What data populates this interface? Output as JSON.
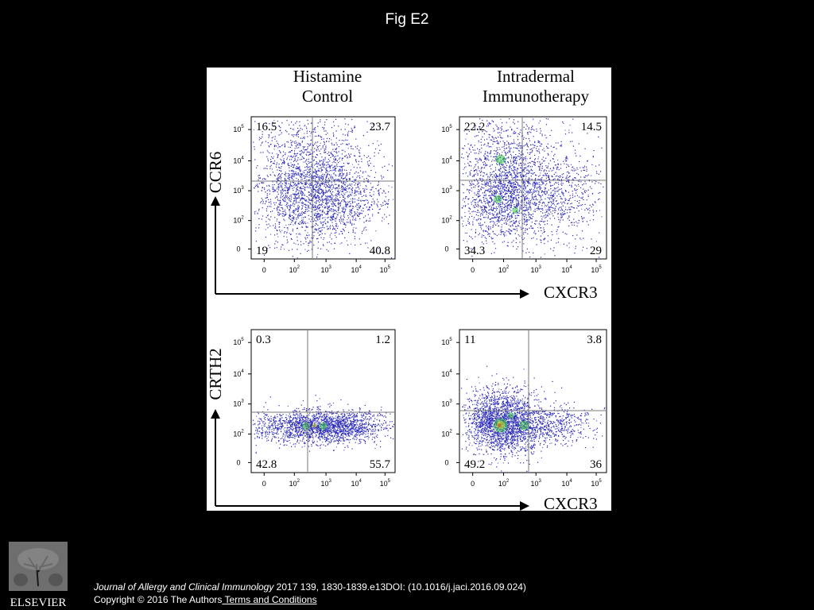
{
  "slide_title": "Fig E2",
  "figure": {
    "column_headers": [
      {
        "line1": "Histamine",
        "line2": "Control"
      },
      {
        "line1": "Intradermal",
        "line2": "Immunotherapy"
      }
    ],
    "row_axis_labels": [
      "CCR6",
      "CRTH2"
    ],
    "x_axis_label": "CXCR3",
    "tick_labels": {
      "x": [
        "0",
        "10",
        "10",
        "10",
        "10"
      ],
      "x_exp": [
        "",
        "2",
        "3",
        "4",
        "5"
      ],
      "y": [
        "0",
        "10",
        "10",
        "10",
        "10"
      ],
      "y_exp": [
        "",
        "2",
        "3",
        "4",
        "5"
      ]
    },
    "colors": {
      "dots": "#2a2ab8",
      "dense_green": "#3ec845",
      "dense_yellow": "#d8d820",
      "dense_red": "#d23a2a",
      "gate": "#7a7a7a"
    }
  },
  "chart_data": [
    {
      "type": "scatter",
      "panel": "Histamine Control",
      "xlabel": "CXCR3",
      "ylabel": "CCR6",
      "axis_ticks": [
        "0",
        "10^2",
        "10^3",
        "10^4",
        "10^5"
      ],
      "quadrant_percent": {
        "upper_left": "16.5",
        "upper_right": "23.7",
        "lower_left": "19",
        "lower_right": "40.8"
      }
    },
    {
      "type": "scatter",
      "panel": "Intradermal Immunotherapy",
      "xlabel": "CXCR3",
      "ylabel": "CCR6",
      "axis_ticks": [
        "0",
        "10^2",
        "10^3",
        "10^4",
        "10^5"
      ],
      "quadrant_percent": {
        "upper_left": "22.2",
        "upper_right": "14.5",
        "lower_left": "34.3",
        "lower_right": "29"
      }
    },
    {
      "type": "scatter",
      "panel": "Histamine Control",
      "xlabel": "CXCR3",
      "ylabel": "CRTH2",
      "axis_ticks": [
        "0",
        "10^2",
        "10^3",
        "10^4",
        "10^5"
      ],
      "quadrant_percent": {
        "upper_left": "0.3",
        "upper_right": "1.2",
        "lower_left": "42.8",
        "lower_right": "55.7"
      }
    },
    {
      "type": "scatter",
      "panel": "Intradermal Immunotherapy",
      "xlabel": "CXCR3",
      "ylabel": "CRTH2",
      "axis_ticks": [
        "0",
        "10^2",
        "10^3",
        "10^4",
        "10^5"
      ],
      "quadrant_percent": {
        "upper_left": "11",
        "upper_right": "3.8",
        "lower_left": "49.2",
        "lower_right": "36"
      }
    }
  ],
  "footer": {
    "logo_text": "ELSEVIER",
    "journal": "Journal of Allergy and Clinical Immunology",
    "citation_rest": " 2017 139, 1830-1839.e13DOI: (10.1016/j.jaci.2016.09.024)",
    "copyright": "Copyright © 2016 The Authors",
    "terms_link": " Terms and Conditions"
  }
}
